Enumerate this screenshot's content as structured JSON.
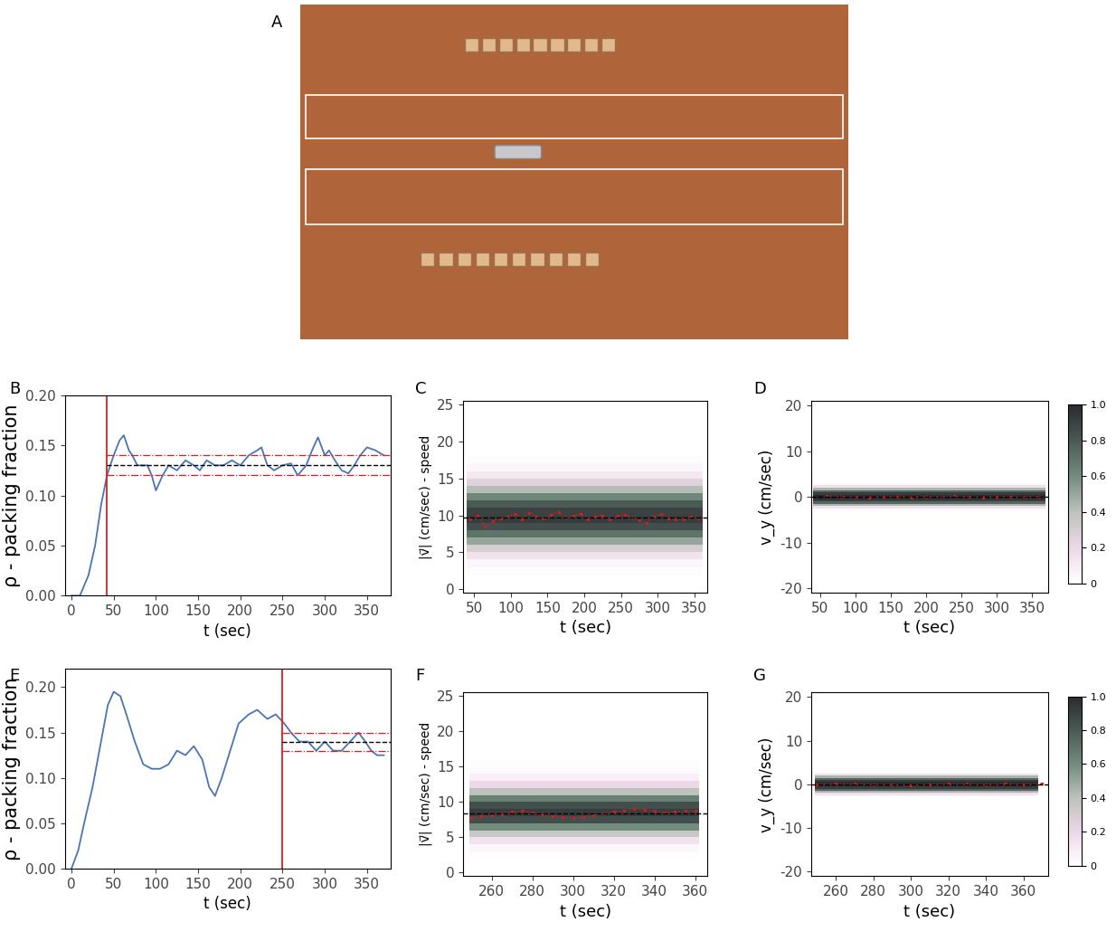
{
  "chart_data": [
    {
      "type": "image",
      "panel_label": "A"
    },
    {
      "type": "line",
      "panel_label": "B",
      "xlabel": "t (sec)",
      "ylabel": "ρ - packing fraction",
      "x": [
        0,
        10,
        20,
        28,
        35,
        42,
        50,
        57,
        62,
        68,
        72,
        78,
        90,
        95,
        100,
        108,
        115,
        125,
        135,
        145,
        152,
        160,
        170,
        180,
        190,
        200,
        210,
        220,
        225,
        232,
        240,
        250,
        260,
        268,
        278,
        285,
        292,
        300,
        305,
        312,
        320,
        328,
        335,
        342,
        350,
        360,
        370
      ],
      "values": [
        0,
        0,
        0.02,
        0.05,
        0.09,
        0.12,
        0.14,
        0.155,
        0.16,
        0.145,
        0.14,
        0.13,
        0.13,
        0.12,
        0.105,
        0.12,
        0.13,
        0.125,
        0.135,
        0.13,
        0.125,
        0.135,
        0.13,
        0.13,
        0.135,
        0.13,
        0.14,
        0.145,
        0.148,
        0.13,
        0.125,
        0.13,
        0.132,
        0.12,
        0.13,
        0.145,
        0.158,
        0.14,
        0.145,
        0.135,
        0.125,
        0.122,
        0.13,
        0.14,
        0.148,
        0.145,
        0.14
      ],
      "color": "#4a74b4",
      "vline": 42,
      "mean": 0.13,
      "band": [
        0.12,
        0.14
      ],
      "xlim": [
        -8,
        378
      ],
      "xticks": [
        0,
        50,
        100,
        150,
        200,
        250,
        300,
        350
      ],
      "ylim": [
        0,
        0.2
      ],
      "yticks": [
        {
          "value": 0,
          "label": "0.00"
        },
        {
          "value": 0.05,
          "label": "0.05"
        },
        {
          "value": 0.1,
          "label": "0.10"
        },
        {
          "value": 0.15,
          "label": "0.15"
        },
        {
          "value": 0.2,
          "label": "0.20"
        }
      ]
    },
    {
      "type": "heatmap",
      "panel_label": "C",
      "xlabel": "t (sec)",
      "ylabel": "|v⃗| (cm/sec) - speed",
      "x_bins": [
        40,
        362
      ],
      "y_bins": [
        0,
        1,
        2,
        3,
        4,
        5,
        6,
        7,
        8,
        9,
        10,
        11,
        12,
        13,
        14,
        15,
        16,
        17,
        18,
        19,
        20
      ],
      "cells": [
        [
          0
        ],
        [
          0
        ],
        [
          0.01
        ],
        [
          0.05
        ],
        [
          0.15
        ],
        [
          0.3
        ],
        [
          0.5
        ],
        [
          0.7
        ],
        [
          0.85
        ],
        [
          0.92
        ],
        [
          0.9
        ],
        [
          0.8
        ],
        [
          0.62
        ],
        [
          0.42
        ],
        [
          0.25
        ],
        [
          0.12
        ],
        [
          0.05
        ],
        [
          0.02
        ],
        [
          0
        ],
        [
          0
        ]
      ],
      "colorbar_range": [
        0,
        1
      ],
      "x": [
        45,
        55,
        65,
        75,
        85,
        95,
        105,
        115,
        125,
        135,
        145,
        155,
        165,
        175,
        185,
        195,
        205,
        215,
        225,
        235,
        245,
        255,
        265,
        275,
        285,
        295,
        305,
        315,
        325,
        335,
        345,
        355
      ],
      "values": [
        9.5,
        10.0,
        8.5,
        9.2,
        9.6,
        9.8,
        10.2,
        9.5,
        10.3,
        9.8,
        9.6,
        10.1,
        10.4,
        9.7,
        9.9,
        10.2,
        9.5,
        9.8,
        10.0,
        9.4,
        9.9,
        10.1,
        9.7,
        9.3,
        9.0,
        9.8,
        10.2,
        9.6,
        9.4,
        9.5,
        9.8,
        9.6
      ],
      "color": "#cc1f1f",
      "mean": 9.7,
      "xlim": [
        35,
        368
      ],
      "xticks": [
        50,
        100,
        150,
        200,
        250,
        300,
        350
      ],
      "ylim": [
        -0.5,
        25.5
      ],
      "yticks": [
        0,
        5,
        10,
        15,
        20,
        25
      ]
    },
    {
      "type": "heatmap",
      "panel_label": "D",
      "xlabel": "t (sec)",
      "ylabel": "v_y (cm/sec)",
      "x_bins": [
        40,
        368
      ],
      "y_bins": [
        -3,
        -2.5,
        -2,
        -1.5,
        -1,
        -0.5,
        0,
        0.5,
        1,
        1.5,
        2,
        2.5,
        3
      ],
      "cells": [
        [
          0.03
        ],
        [
          0.15
        ],
        [
          0.45
        ],
        [
          0.75
        ],
        [
          0.92
        ],
        [
          1.0
        ],
        [
          1.0
        ],
        [
          0.92
        ],
        [
          0.75
        ],
        [
          0.45
        ],
        [
          0.15
        ],
        [
          0.03
        ]
      ],
      "colorbar_range": [
        0,
        1
      ],
      "colorbar_ticks": [
        0,
        0.2,
        0.4,
        0.6,
        0.8,
        {
          "value": 1,
          "label": "1.0"
        }
      ],
      "x": [
        60,
        80,
        100,
        120,
        140,
        160,
        180,
        200,
        220,
        240,
        260,
        280,
        300,
        320,
        340,
        360
      ],
      "values": [
        0.3,
        0.1,
        0,
        -0.1,
        0,
        0.1,
        -0.1,
        0,
        0.1,
        0.2,
        0,
        -0.1,
        0,
        0.1,
        0,
        0.1
      ],
      "color": "#cc1f1f",
      "mean": 0,
      "xlim": [
        38,
        372
      ],
      "xticks": [
        50,
        100,
        150,
        200,
        250,
        300,
        350
      ],
      "ylim": [
        -21,
        21
      ],
      "yticks": [
        -20,
        -10,
        0,
        10,
        20
      ]
    },
    {
      "type": "line",
      "panel_label": "E",
      "xlabel": "t (sec)",
      "ylabel": "ρ - packing fraction",
      "x": [
        0,
        8,
        15,
        25,
        35,
        43,
        50,
        58,
        65,
        75,
        85,
        95,
        105,
        115,
        125,
        135,
        145,
        155,
        163,
        170,
        178,
        188,
        198,
        210,
        220,
        232,
        242,
        252,
        260,
        270,
        280,
        290,
        300,
        310,
        320,
        335,
        340,
        348,
        355,
        362,
        370
      ],
      "values": [
        0,
        0.02,
        0.05,
        0.09,
        0.14,
        0.18,
        0.195,
        0.19,
        0.17,
        0.14,
        0.115,
        0.11,
        0.11,
        0.115,
        0.13,
        0.125,
        0.135,
        0.12,
        0.09,
        0.08,
        0.1,
        0.13,
        0.16,
        0.17,
        0.175,
        0.165,
        0.17,
        0.16,
        0.15,
        0.14,
        0.14,
        0.13,
        0.14,
        0.13,
        0.13,
        0.145,
        0.15,
        0.14,
        0.13,
        0.125,
        0.125
      ],
      "color": "#4a74b4",
      "vline": 250,
      "mean": 0.14,
      "band": [
        0.13,
        0.15
      ],
      "xlim": [
        -8,
        378
      ],
      "xticks": [
        0,
        50,
        100,
        150,
        200,
        250,
        300,
        350
      ],
      "ylim": [
        0,
        0.22
      ],
      "yticks": [
        {
          "value": 0,
          "label": "0.00"
        },
        {
          "value": 0.05,
          "label": "0.05"
        },
        {
          "value": 0.1,
          "label": "0.10"
        },
        {
          "value": 0.15,
          "label": "0.15"
        },
        {
          "value": 0.2,
          "label": "0.20"
        }
      ]
    },
    {
      "type": "heatmap",
      "panel_label": "F",
      "xlabel": "t (sec)",
      "ylabel": "|v⃗| (cm/sec) - speed",
      "x_bins": [
        249,
        362
      ],
      "y_bins": [
        0,
        1,
        2,
        3,
        4,
        5,
        6,
        7,
        8,
        9,
        10,
        11,
        12,
        13,
        14,
        15,
        16,
        17,
        18
      ],
      "cells": [
        [
          0
        ],
        [
          0
        ],
        [
          0.01
        ],
        [
          0.05
        ],
        [
          0.15
        ],
        [
          0.35
        ],
        [
          0.6
        ],
        [
          0.85
        ],
        [
          0.92
        ],
        [
          0.85
        ],
        [
          0.65
        ],
        [
          0.4
        ],
        [
          0.2
        ],
        [
          0.08
        ],
        [
          0.03
        ],
        [
          0.01
        ],
        [
          0
        ],
        [
          0
        ]
      ],
      "colorbar_range": [
        0,
        1
      ],
      "x": [
        250,
        255,
        260,
        265,
        270,
        275,
        280,
        285,
        290,
        295,
        300,
        305,
        310,
        315,
        320,
        325,
        330,
        335,
        340,
        345,
        350,
        355,
        360
      ],
      "values": [
        7.8,
        8.0,
        8.1,
        8.3,
        8.6,
        8.8,
        8.5,
        8.2,
        8.0,
        7.9,
        7.7,
        7.9,
        8.1,
        8.4,
        8.6,
        8.8,
        9.0,
        8.9,
        8.7,
        8.5,
        8.6,
        8.8,
        8.7
      ],
      "color": "#cc1f1f",
      "mean": 8.4,
      "xlim": [
        246,
        366
      ],
      "xticks": [
        260,
        280,
        300,
        320,
        340,
        360
      ],
      "ylim": [
        -0.5,
        25.5
      ],
      "yticks": [
        0,
        5,
        10,
        15,
        20,
        25
      ]
    },
    {
      "type": "heatmap",
      "panel_label": "G",
      "xlabel": "t (sec)",
      "ylabel": "v_y (cm/sec)",
      "x_bins": [
        249,
        368
      ],
      "y_bins": [
        -3,
        -2.5,
        -2,
        -1.5,
        -1,
        -0.5,
        0,
        0.5,
        1,
        1.5,
        2,
        2.5,
        3
      ],
      "cells": [
        [
          0.03
        ],
        [
          0.15
        ],
        [
          0.45
        ],
        [
          0.75
        ],
        [
          0.92
        ],
        [
          1.0
        ],
        [
          1.0
        ],
        [
          0.92
        ],
        [
          0.75
        ],
        [
          0.45
        ],
        [
          0.15
        ],
        [
          0.03
        ]
      ],
      "colorbar_range": [
        0,
        1
      ],
      "colorbar_ticks": [
        0,
        0.2,
        0.4,
        0.6,
        0.8,
        {
          "value": 1,
          "label": "1.0"
        }
      ],
      "x": [
        250,
        260,
        270,
        280,
        290,
        300,
        310,
        320,
        330,
        340,
        350,
        360,
        370
      ],
      "values": [
        0,
        0.1,
        0.1,
        0,
        -0.1,
        -0.3,
        0,
        0.1,
        0.1,
        0,
        0.1,
        0,
        0.1
      ],
      "color": "#cc1f1f",
      "mean": 0,
      "xlim": [
        247,
        373
      ],
      "xticks": [
        260,
        280,
        300,
        320,
        340,
        360
      ],
      "ylim": [
        -21,
        21
      ],
      "yticks": [
        -20,
        -10,
        0,
        10,
        20
      ]
    }
  ]
}
